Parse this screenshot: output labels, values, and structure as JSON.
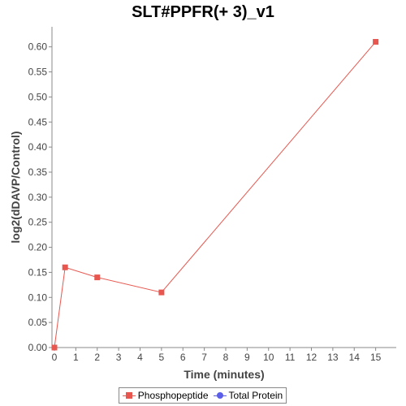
{
  "chart_data": {
    "type": "line",
    "title": "SLT#PPFR(+ 3)_v1",
    "xlabel": "Time (minutes)",
    "ylabel": "log2(dDAVP/Control)",
    "xlim": [
      0,
      16
    ],
    "ylim": [
      0,
      0.64
    ],
    "x_ticks": [
      0,
      1,
      2,
      3,
      4,
      5,
      6,
      7,
      8,
      9,
      10,
      11,
      12,
      13,
      14,
      15
    ],
    "y_ticks": [
      "0.00",
      "0.05",
      "0.10",
      "0.15",
      "0.20",
      "0.25",
      "0.30",
      "0.35",
      "0.40",
      "0.45",
      "0.50",
      "0.55",
      "0.60"
    ],
    "grid": false,
    "legend_position": "bottom",
    "series": [
      {
        "name": "Phosphopeptide",
        "color": "#e8574f",
        "marker": "square",
        "points": [
          [
            0,
            0.0
          ],
          [
            0.5,
            0.16
          ],
          [
            2,
            0.14
          ],
          [
            5,
            0.11
          ],
          [
            15,
            0.61
          ]
        ]
      },
      {
        "name": "Total Protein",
        "color": "#5a5ee8",
        "marker": "circle",
        "points": []
      }
    ]
  }
}
